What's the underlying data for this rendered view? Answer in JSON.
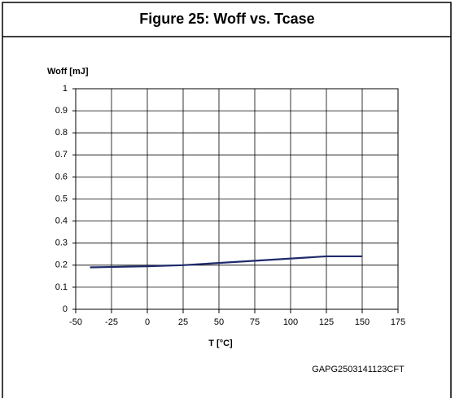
{
  "chart_data": {
    "type": "line",
    "title": "Figure 25: Woff vs. Tcase",
    "y_label": "Woff [mJ]",
    "x_label": "T [°C]",
    "annotation": "GAPG2503141123CFT",
    "x": [
      -40,
      0,
      25,
      75,
      125,
      150
    ],
    "series": [
      {
        "name": "Woff",
        "color": "#1f2a6b",
        "values": [
          0.19,
          0.195,
          0.2,
          0.22,
          0.24,
          0.24
        ]
      }
    ],
    "xlim": [
      -50,
      175
    ],
    "xticks": [
      -50,
      -25,
      0,
      25,
      50,
      75,
      100,
      125,
      150,
      175
    ],
    "ylim": [
      0,
      1
    ],
    "yticks": [
      0,
      0.1,
      0.2,
      0.3,
      0.4,
      0.5,
      0.6,
      0.7,
      0.8,
      0.9,
      1
    ],
    "grid": true
  }
}
